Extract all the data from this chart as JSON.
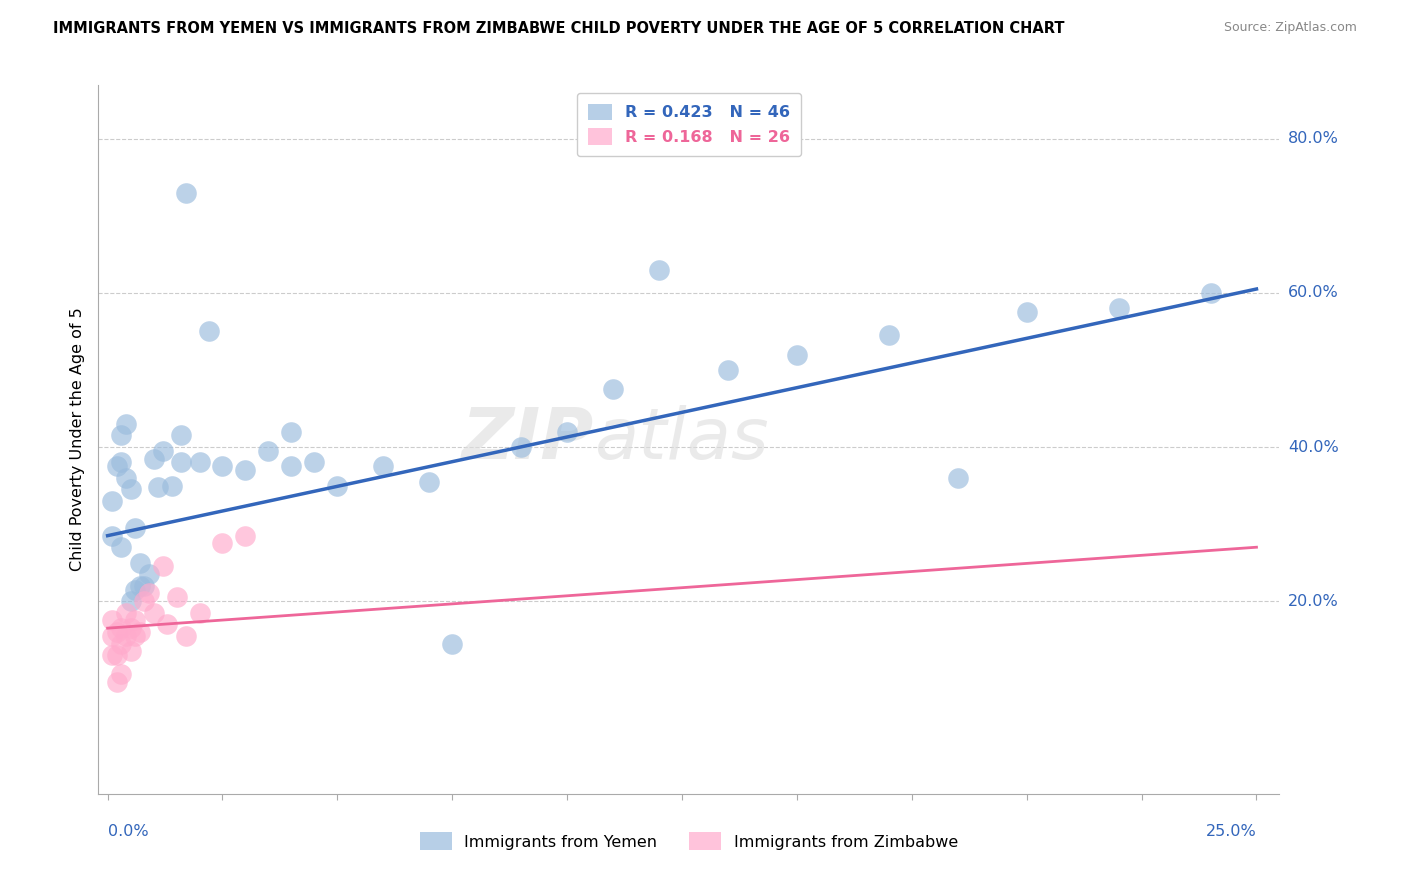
{
  "title": "IMMIGRANTS FROM YEMEN VS IMMIGRANTS FROM ZIMBABWE CHILD POVERTY UNDER THE AGE OF 5 CORRELATION CHART",
  "source": "Source: ZipAtlas.com",
  "ylabel": "Child Poverty Under the Age of 5",
  "y_ticks": [
    0.2,
    0.4,
    0.6,
    0.8
  ],
  "y_tick_labels": [
    "20.0%",
    "40.0%",
    "60.0%",
    "80.0%"
  ],
  "x_tick_left": "0.0%",
  "x_tick_right": "25.0%",
  "xlim": [
    -0.002,
    0.255
  ],
  "ylim": [
    -0.05,
    0.87
  ],
  "yemen_R": 0.423,
  "yemen_N": 46,
  "zimbabwe_R": 0.168,
  "zimbabwe_N": 26,
  "yemen_color": "#99BBDD",
  "zimbabwe_color": "#FFAACC",
  "yemen_line_color": "#3366BB",
  "zimbabwe_line_color": "#EE6699",
  "watermark_text": "ZIP",
  "watermark_text2": "atlas",
  "yemen_line_x": [
    0.0,
    0.25
  ],
  "yemen_line_y": [
    0.285,
    0.605
  ],
  "zimbabwe_line_x": [
    0.0,
    0.25
  ],
  "zimbabwe_line_y": [
    0.165,
    0.27
  ],
  "yemen_scatter_x": [
    0.001,
    0.001,
    0.002,
    0.003,
    0.003,
    0.003,
    0.004,
    0.004,
    0.005,
    0.005,
    0.006,
    0.006,
    0.007,
    0.007,
    0.008,
    0.009,
    0.01,
    0.011,
    0.012,
    0.014,
    0.016,
    0.016,
    0.017,
    0.02,
    0.022,
    0.025,
    0.03,
    0.035,
    0.04,
    0.04,
    0.045,
    0.05,
    0.06,
    0.07,
    0.075,
    0.09,
    0.1,
    0.11,
    0.12,
    0.135,
    0.15,
    0.17,
    0.185,
    0.2,
    0.22,
    0.24
  ],
  "yemen_scatter_y": [
    0.285,
    0.33,
    0.375,
    0.38,
    0.415,
    0.27,
    0.36,
    0.43,
    0.2,
    0.345,
    0.215,
    0.295,
    0.22,
    0.25,
    0.22,
    0.235,
    0.385,
    0.348,
    0.395,
    0.35,
    0.38,
    0.415,
    0.73,
    0.38,
    0.55,
    0.375,
    0.37,
    0.395,
    0.42,
    0.375,
    0.38,
    0.35,
    0.375,
    0.355,
    0.145,
    0.4,
    0.42,
    0.475,
    0.63,
    0.5,
    0.52,
    0.545,
    0.36,
    0.575,
    0.58,
    0.6
  ],
  "zimbabwe_scatter_x": [
    0.001,
    0.001,
    0.001,
    0.002,
    0.002,
    0.002,
    0.003,
    0.003,
    0.003,
    0.004,
    0.004,
    0.005,
    0.005,
    0.006,
    0.006,
    0.007,
    0.008,
    0.009,
    0.01,
    0.012,
    0.013,
    0.015,
    0.017,
    0.02,
    0.025,
    0.03
  ],
  "zimbabwe_scatter_y": [
    0.175,
    0.155,
    0.13,
    0.16,
    0.13,
    0.095,
    0.165,
    0.145,
    0.105,
    0.185,
    0.155,
    0.165,
    0.135,
    0.175,
    0.155,
    0.16,
    0.2,
    0.21,
    0.185,
    0.245,
    0.17,
    0.205,
    0.155,
    0.185,
    0.275,
    0.285
  ]
}
